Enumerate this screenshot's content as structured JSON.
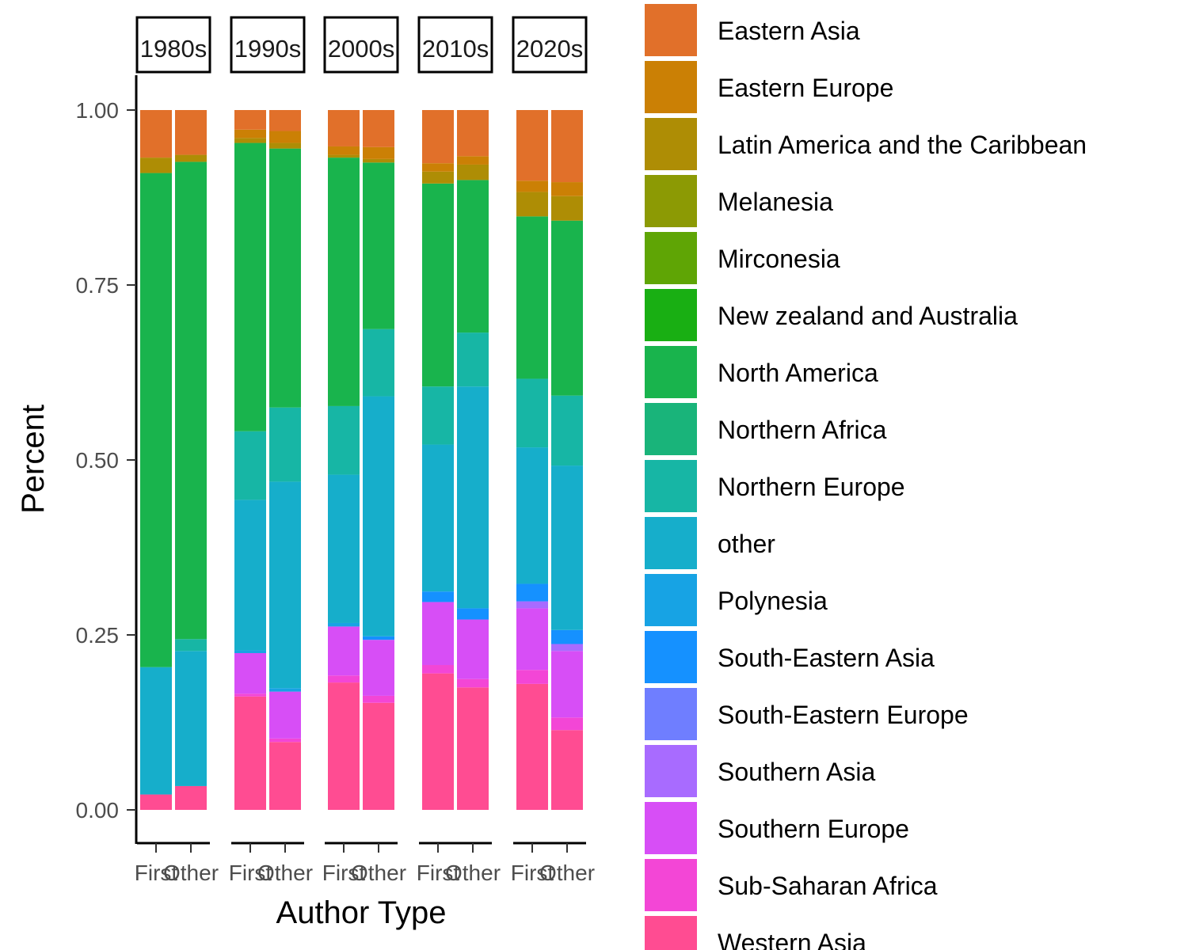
{
  "chart_data": {
    "type": "bar",
    "stacked": true,
    "facet_labels": [
      "1980s",
      "1990s",
      "2000s",
      "2010s",
      "2020s"
    ],
    "categories": [
      "First",
      "Other"
    ],
    "xlabel": "Author Type",
    "ylabel": "Percent",
    "ylim": [
      0,
      1
    ],
    "y_ticks": [
      "0.00",
      "0.25",
      "0.50",
      "0.75",
      "1.00"
    ],
    "grid": false,
    "legend_position": "right",
    "series": [
      {
        "name": "Eastern Asia",
        "color": "#E1702A"
      },
      {
        "name": "Eastern Europe",
        "color": "#CB8005"
      },
      {
        "name": "Latin America and the Caribbean",
        "color": "#AE8D05"
      },
      {
        "name": "Melanesia",
        "color": "#8C9A04"
      },
      {
        "name": "Mirconesia",
        "color": "#5FA505"
      },
      {
        "name": "New zealand and Australia",
        "color": "#19AF13"
      },
      {
        "name": "North America",
        "color": "#19B44D"
      },
      {
        "name": "Northern Africa",
        "color": "#19B47A"
      },
      {
        "name": "Northern Europe",
        "color": "#17B6A5"
      },
      {
        "name": "other",
        "color": "#16AECB"
      },
      {
        "name": "Polynesia",
        "color": "#17A3E4"
      },
      {
        "name": "South-Eastern Asia",
        "color": "#1591FF"
      },
      {
        "name": "South-Eastern Europe",
        "color": "#6F7EFF"
      },
      {
        "name": "Southern Asia",
        "color": "#A86BFF"
      },
      {
        "name": "Southern Europe",
        "color": "#D74EF6"
      },
      {
        "name": "Sub-Saharan Africa",
        "color": "#F346D6"
      },
      {
        "name": "Western Asia",
        "color": "#FF4C92"
      }
    ],
    "bars": [
      {
        "decade": "1980s",
        "author": "First",
        "stack": [
          [
            "Western Asia",
            0.022
          ],
          [
            "other",
            0.182
          ],
          [
            "North America",
            0.706
          ],
          [
            "Latin America and the Caribbean",
            0.022
          ],
          [
            "Eastern Asia",
            0.068
          ]
        ]
      },
      {
        "decade": "1980s",
        "author": "Other",
        "stack": [
          [
            "Western Asia",
            0.034
          ],
          [
            "other",
            0.193
          ],
          [
            "Northern Europe",
            0.017
          ],
          [
            "North America",
            0.682
          ],
          [
            "Latin America and the Caribbean",
            0.01
          ],
          [
            "Eastern Asia",
            0.064
          ]
        ]
      },
      {
        "decade": "1990s",
        "author": "First",
        "stack": [
          [
            "Western Asia",
            0.162
          ],
          [
            "Sub-Saharan Africa",
            0.004
          ],
          [
            "Southern Europe",
            0.058
          ],
          [
            "Polynesia",
            0.004
          ],
          [
            "other",
            0.215
          ],
          [
            "Northern Europe",
            0.098
          ],
          [
            "North America",
            0.412
          ],
          [
            "Latin America and the Caribbean",
            0.007
          ],
          [
            "Eastern Europe",
            0.012
          ],
          [
            "Eastern Asia",
            0.028
          ]
        ]
      },
      {
        "decade": "1990s",
        "author": "Other",
        "stack": [
          [
            "Western Asia",
            0.097
          ],
          [
            "Sub-Saharan Africa",
            0.005
          ],
          [
            "Southern Europe",
            0.067
          ],
          [
            "Polynesia",
            0.005
          ],
          [
            "other",
            0.295
          ],
          [
            "Northern Europe",
            0.106
          ],
          [
            "North America",
            0.37
          ],
          [
            "Latin America and the Caribbean",
            0.008
          ],
          [
            "Eastern Europe",
            0.017
          ],
          [
            "Eastern Asia",
            0.03
          ]
        ]
      },
      {
        "decade": "2000s",
        "author": "First",
        "stack": [
          [
            "Western Asia",
            0.182
          ],
          [
            "Sub-Saharan Africa",
            0.01
          ],
          [
            "Southern Europe",
            0.07
          ],
          [
            "Polynesia",
            0.005
          ],
          [
            "other",
            0.212
          ],
          [
            "Northern Europe",
            0.098
          ],
          [
            "North America",
            0.355
          ],
          [
            "Latin America and the Caribbean",
            0.004
          ],
          [
            "Eastern Europe",
            0.012
          ],
          [
            "Eastern Asia",
            0.052
          ]
        ]
      },
      {
        "decade": "2000s",
        "author": "Other",
        "stack": [
          [
            "Western Asia",
            0.153
          ],
          [
            "Sub-Saharan Africa",
            0.01
          ],
          [
            "Southern Europe",
            0.08
          ],
          [
            "South-Eastern Asia",
            0.005
          ],
          [
            "other",
            0.343
          ],
          [
            "Northern Europe",
            0.096
          ],
          [
            "North America",
            0.238
          ],
          [
            "Latin America and the Caribbean",
            0.005
          ],
          [
            "Eastern Europe",
            0.017
          ],
          [
            "Eastern Asia",
            0.053
          ]
        ]
      },
      {
        "decade": "2010s",
        "author": "First",
        "stack": [
          [
            "Western Asia",
            0.195
          ],
          [
            "Sub-Saharan Africa",
            0.012
          ],
          [
            "Southern Europe",
            0.09
          ],
          [
            "South-Eastern Asia",
            0.015
          ],
          [
            "other",
            0.21
          ],
          [
            "Northern Europe",
            0.083
          ],
          [
            "North America",
            0.29
          ],
          [
            "Latin America and the Caribbean",
            0.017
          ],
          [
            "Eastern Europe",
            0.012
          ],
          [
            "Eastern Asia",
            0.076
          ]
        ]
      },
      {
        "decade": "2010s",
        "author": "Other",
        "stack": [
          [
            "Western Asia",
            0.175
          ],
          [
            "Sub-Saharan Africa",
            0.012
          ],
          [
            "Southern Europe",
            0.085
          ],
          [
            "South-Eastern Asia",
            0.016
          ],
          [
            "other",
            0.317
          ],
          [
            "Northern Europe",
            0.077
          ],
          [
            "North America",
            0.218
          ],
          [
            "Latin America and the Caribbean",
            0.022
          ],
          [
            "Eastern Europe",
            0.012
          ],
          [
            "Eastern Asia",
            0.066
          ]
        ]
      },
      {
        "decade": "2020s",
        "author": "First",
        "stack": [
          [
            "Western Asia",
            0.18
          ],
          [
            "Sub-Saharan Africa",
            0.02
          ],
          [
            "Southern Europe",
            0.088
          ],
          [
            "Southern Asia",
            0.01
          ],
          [
            "South-Eastern Asia",
            0.025
          ],
          [
            "other",
            0.195
          ],
          [
            "Northern Europe",
            0.098
          ],
          [
            "North America",
            0.232
          ],
          [
            "Latin America and the Caribbean",
            0.035
          ],
          [
            "Eastern Europe",
            0.016
          ],
          [
            "Eastern Asia",
            0.101
          ]
        ]
      },
      {
        "decade": "2020s",
        "author": "Other",
        "stack": [
          [
            "Western Asia",
            0.114
          ],
          [
            "Sub-Saharan Africa",
            0.018
          ],
          [
            "Southern Europe",
            0.095
          ],
          [
            "Southern Asia",
            0.01
          ],
          [
            "South-Eastern Asia",
            0.02
          ],
          [
            "other",
            0.235
          ],
          [
            "Northern Europe",
            0.1
          ],
          [
            "North America",
            0.25
          ],
          [
            "Latin America and the Caribbean",
            0.035
          ],
          [
            "Eastern Europe",
            0.02
          ],
          [
            "Eastern Asia",
            0.103
          ]
        ]
      }
    ]
  }
}
